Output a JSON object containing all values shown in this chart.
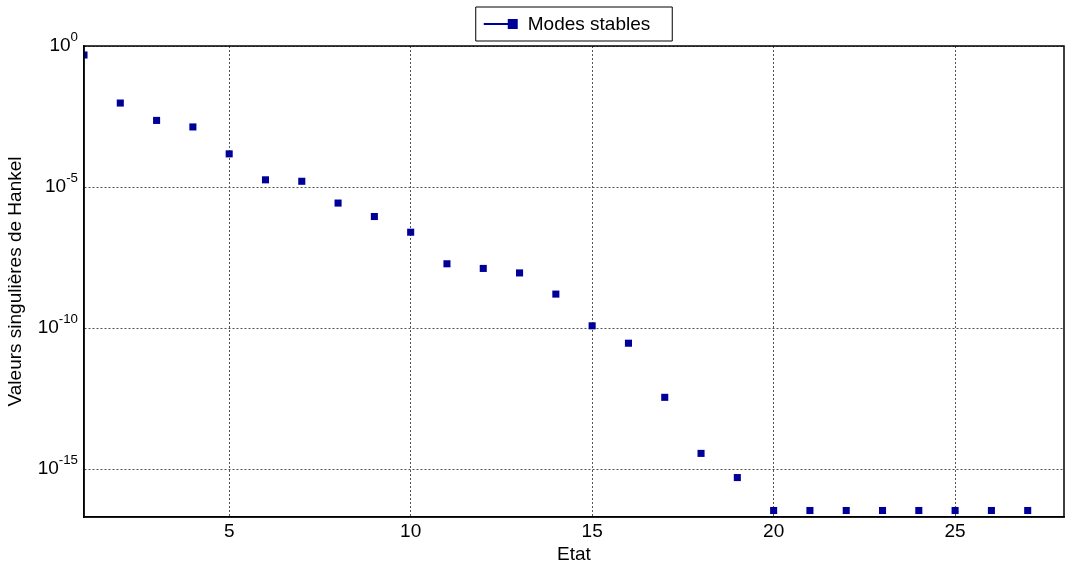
{
  "chart_data": {
    "type": "scatter",
    "xlabel": "Etat",
    "ylabel": "Valeurs singulières de Hankel",
    "x": [
      1,
      2,
      3,
      4,
      5,
      6,
      7,
      8,
      9,
      10,
      11,
      12,
      13,
      14,
      15,
      16,
      17,
      18,
      19,
      20,
      21,
      22,
      23,
      24,
      25,
      26,
      27
    ],
    "series": [
      {
        "name": "Modes stables",
        "color": "#000099",
        "values": [
          0.48,
          0.0095,
          0.0023,
          0.00135,
          0.00015,
          1.8e-05,
          1.6e-05,
          2.7e-06,
          9e-07,
          2.5e-07,
          1.9e-08,
          1.3e-08,
          9e-09,
          1.6e-09,
          1.2e-10,
          2.9e-11,
          3.5e-13,
          3.6e-15,
          5e-16,
          3.4e-17,
          3.4e-17,
          3.4e-17,
          3.4e-17,
          3.4e-17,
          3.4e-17,
          3.4e-17,
          3.4e-17
        ]
      }
    ],
    "log": "y",
    "xlim": [
      1,
      28
    ],
    "xticks": [
      5,
      10,
      15,
      20,
      25
    ],
    "ylim": [
      2e-17,
      1
    ],
    "yticks": [
      {
        "value": 1,
        "label": "10$^{0}$"
      },
      {
        "value": 1e-05,
        "label": "10$^{-5}$"
      },
      {
        "value": 1e-10,
        "label": "10$^{-10}$"
      },
      {
        "value": 1e-15,
        "label": "10$^{-15}$"
      }
    ],
    "grid": true,
    "legend": "top",
    "marker": "square"
  }
}
